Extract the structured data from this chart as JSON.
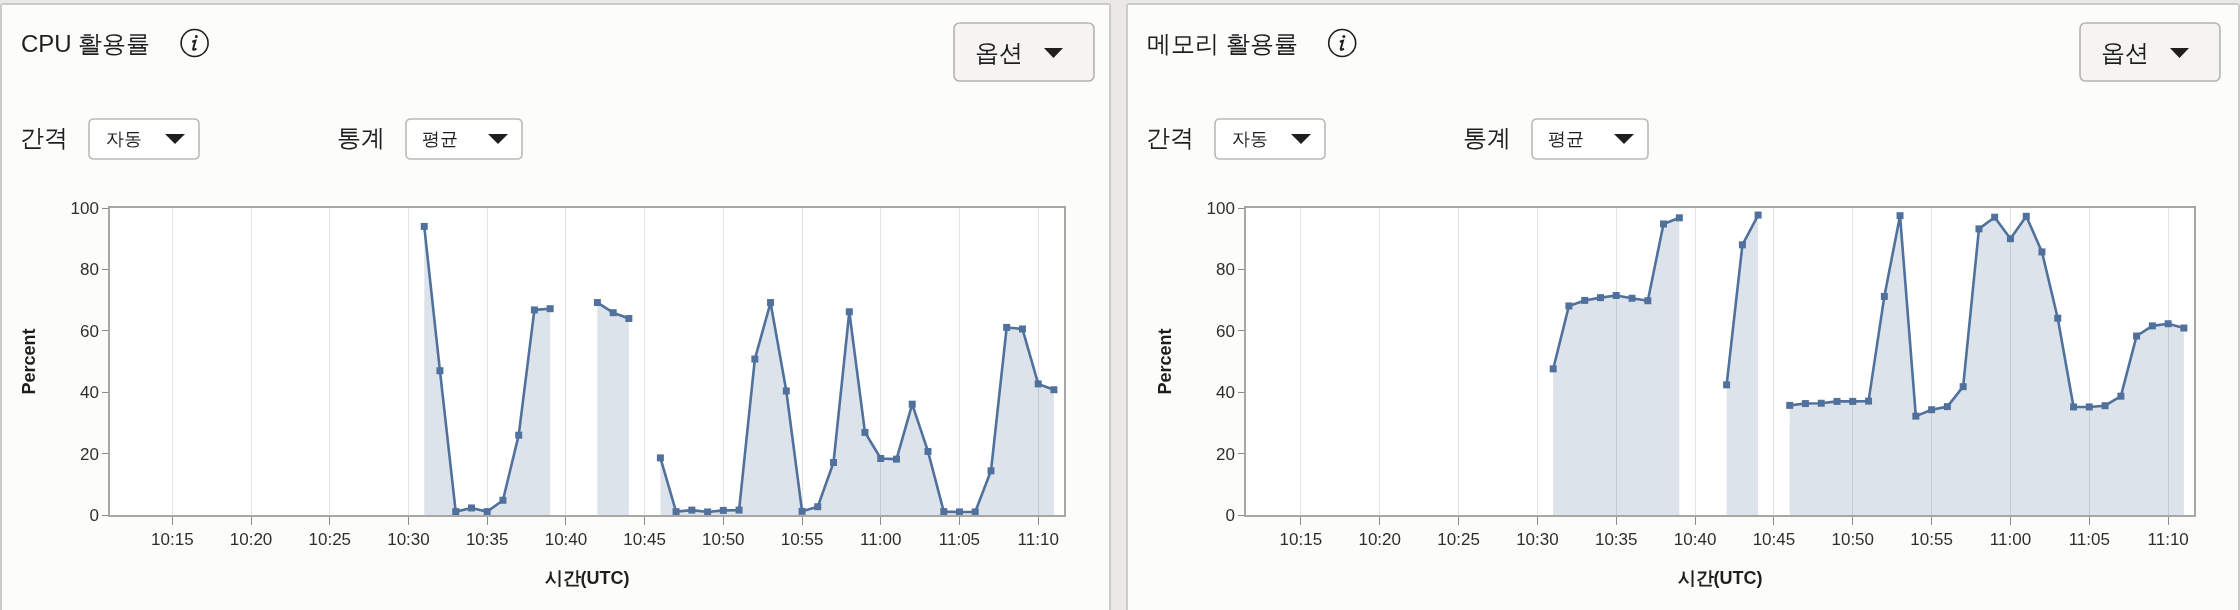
{
  "chart_data": [
    {
      "type": "area",
      "title": "CPU 활용률",
      "xlabel": "시간(UTC)",
      "ylabel": "Percent",
      "annotations": [
        "옵션",
        "간격",
        "자동",
        "통계",
        "평균"
      ],
      "x": [
        10.5167,
        10.5333,
        10.55,
        10.5667,
        10.5833,
        10.6,
        10.6167,
        10.6333,
        10.65,
        10.6667,
        10.6833,
        10.7,
        10.7167,
        10.7333,
        10.75,
        10.7667,
        10.7833,
        10.8,
        10.8167,
        10.8333,
        10.85,
        10.8667,
        10.8833,
        10.9,
        10.9167,
        10.9333,
        10.95,
        10.9667,
        10.9833,
        11.0,
        11.0167,
        11.0333,
        11.05,
        11.0667,
        11.0833,
        11.1,
        11.1167,
        11.1333,
        11.15,
        11.1667,
        11.1833
      ],
      "values": [
        94,
        47,
        1.1,
        2.3,
        1.1,
        4.8,
        26,
        66.8,
        67.2,
        null,
        null,
        69.2,
        65.9,
        64,
        null,
        18.6,
        1.1,
        1.6,
        1.0,
        1.5,
        1.6,
        50.8,
        69.2,
        40.4,
        1.2,
        2.7,
        17.1,
        66.2,
        26.9,
        18.4,
        18.2,
        36.1,
        20.7,
        1.1,
        1.0,
        1.0,
        14.4,
        61.1,
        60.6,
        42.7,
        40.8
      ],
      "color": "#51719d",
      "xlim": [
        10.184,
        11.194
      ],
      "xticks": [
        {
          "value": 10.25,
          "label": "10:15"
        },
        {
          "value": 10.3333,
          "label": "10:20"
        },
        {
          "value": 10.4167,
          "label": "10:25"
        },
        {
          "value": 10.5,
          "label": "10:30"
        },
        {
          "value": 10.5833,
          "label": "10:35"
        },
        {
          "value": 10.6667,
          "label": "10:40"
        },
        {
          "value": 10.75,
          "label": "10:45"
        },
        {
          "value": 10.8333,
          "label": "10:50"
        },
        {
          "value": 10.9167,
          "label": "10:55"
        },
        {
          "value": 11.0,
          "label": "11:00"
        },
        {
          "value": 11.0833,
          "label": "11:05"
        },
        {
          "value": 11.1667,
          "label": "11:10"
        }
      ],
      "ylim": [
        0,
        100
      ],
      "yticks": [
        0,
        20,
        40,
        60,
        80,
        100
      ],
      "grid": "x",
      "marker": "square",
      "line_style": "solid"
    },
    {
      "type": "area",
      "title": "메모리 활용률",
      "xlabel": "시간(UTC)",
      "ylabel": "Percent",
      "annotations": [
        "옵션",
        "간격",
        "자동",
        "통계",
        "평균"
      ],
      "x": [
        10.5167,
        10.5333,
        10.55,
        10.5667,
        10.5833,
        10.6,
        10.6167,
        10.6333,
        10.65,
        10.6667,
        10.6833,
        10.7,
        10.7167,
        10.7333,
        10.75,
        10.7667,
        10.7833,
        10.8,
        10.8167,
        10.8333,
        10.85,
        10.8667,
        10.8833,
        10.9,
        10.9167,
        10.9333,
        10.95,
        10.9667,
        10.9833,
        11.0,
        11.0167,
        11.0333,
        11.05,
        11.0667,
        11.0833,
        11.1,
        11.1167,
        11.1333,
        11.15,
        11.1667,
        11.1833
      ],
      "values": [
        47.6,
        68.1,
        69.9,
        70.8,
        71.5,
        70.6,
        69.8,
        94.8,
        96.8,
        null,
        null,
        42.4,
        88,
        97.7,
        null,
        35.7,
        36.3,
        36.4,
        37,
        37,
        37.1,
        71.2,
        97.5,
        32.2,
        34.3,
        35.3,
        41.8,
        93.2,
        97,
        90,
        97.3,
        85.7,
        64.1,
        35.2,
        35.2,
        35.6,
        38.7,
        58.3,
        61.6,
        62.3,
        60.9
      ],
      "color": "#51719d",
      "xlim": [
        10.192,
        11.194
      ],
      "xticks": [
        {
          "value": 10.25,
          "label": "10:15"
        },
        {
          "value": 10.3333,
          "label": "10:20"
        },
        {
          "value": 10.4167,
          "label": "10:25"
        },
        {
          "value": 10.5,
          "label": "10:30"
        },
        {
          "value": 10.5833,
          "label": "10:35"
        },
        {
          "value": 10.6667,
          "label": "10:40"
        },
        {
          "value": 10.75,
          "label": "10:45"
        },
        {
          "value": 10.8333,
          "label": "10:50"
        },
        {
          "value": 10.9167,
          "label": "10:55"
        },
        {
          "value": 11.0,
          "label": "11:00"
        },
        {
          "value": 11.0833,
          "label": "11:05"
        },
        {
          "value": 11.1667,
          "label": "11:10"
        }
      ],
      "ylim": [
        0,
        100
      ],
      "yticks": [
        0,
        20,
        40,
        60,
        80,
        100
      ],
      "grid": "x",
      "marker": "square",
      "line_style": "solid"
    }
  ]
}
